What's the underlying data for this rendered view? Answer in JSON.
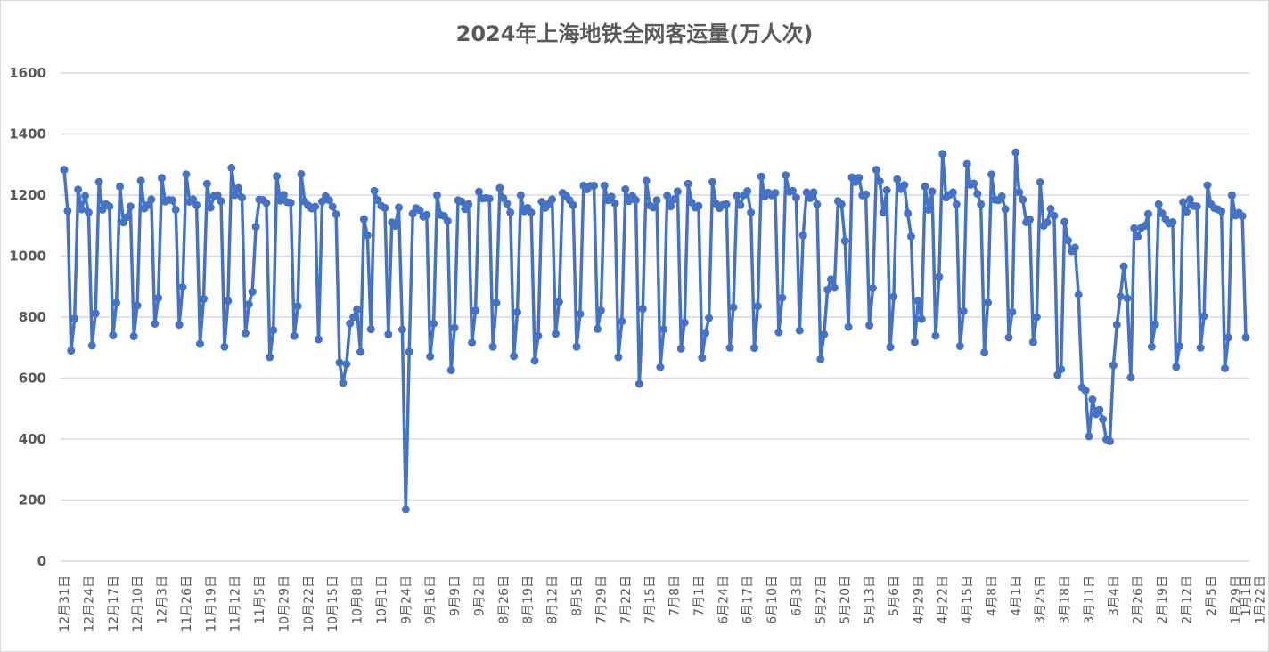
{
  "chart_data": {
    "type": "line",
    "title": "2024年上海地铁全网客运量(万人次)",
    "xlabel": "",
    "ylabel": "",
    "ylim": [
      0,
      1600
    ],
    "yticks": [
      0,
      200,
      400,
      600,
      800,
      1000,
      1200,
      1400,
      1600
    ],
    "grid": true,
    "legend": "none",
    "x_order": "reverse-chronological (12月31日 left → 1月1日 right)",
    "xtick_labels": [
      "12月31日",
      "12月24日",
      "12月17日",
      "12月10日",
      "12月3日",
      "11月26日",
      "11月19日",
      "11月12日",
      "11月5日",
      "10月29日",
      "10月22日",
      "10月15日",
      "10月8日",
      "10月1日",
      "9月24日",
      "9月16日",
      "9月9日",
      "9月2日",
      "8月26日",
      "8月19日",
      "8月12日",
      "8月5日",
      "7月29日",
      "7月22日",
      "7月15日",
      "7月8日",
      "7月1日",
      "6月24日",
      "6月17日",
      "6月10日",
      "6月3日",
      "5月27日",
      "5月20日",
      "5月13日",
      "5月6日",
      "4月29日",
      "4月22日",
      "4月15日",
      "4月8日",
      "4月1日",
      "3月25日",
      "3月18日",
      "3月11日",
      "3月4日",
      "2月26日",
      "2月19日",
      "2月12日",
      "2月5日",
      "1月29日",
      "1月22日",
      "1月15日",
      "1月8日",
      "1月1日"
    ],
    "series": [
      {
        "name": "全网客运量",
        "color": "#4472C4",
        "values": [
          1283,
          1148,
          690,
          795,
          1218,
          1153,
          1197,
          1143,
          707,
          812,
          1243,
          1152,
          1170,
          1163,
          740,
          847,
          1228,
          1110,
          1128,
          1163,
          737,
          838,
          1247,
          1156,
          1167,
          1186,
          778,
          863,
          1256,
          1179,
          1184,
          1183,
          1152,
          775,
          898,
          1268,
          1178,
          1186,
          1167,
          712,
          860,
          1237,
          1159,
          1197,
          1199,
          1180,
          703,
          853,
          1289,
          1200,
          1223,
          1192,
          747,
          842,
          883,
          1096,
          1185,
          1184,
          1174,
          669,
          757,
          1262,
          1182,
          1201,
          1177,
          1175,
          738,
          836,
          1269,
          1179,
          1166,
          1156,
          1162,
          727,
          1179,
          1196,
          1183,
          1162,
          1137,
          651,
          584,
          646,
          779,
          800,
          825,
          686,
          1121,
          1068,
          760,
          1214,
          1183,
          1164,
          1158,
          743,
          1110,
          1099,
          1159,
          759,
          170,
          686,
          1139,
          1157,
          1150,
          1129,
          1135,
          671,
          779,
          1199,
          1135,
          1131,
          1115,
          626,
          765,
          1183,
          1179,
          1154,
          1170,
          716,
          822,
          1211,
          1189,
          1190,
          1188,
          703,
          847,
          1223,
          1190,
          1172,
          1143,
          672,
          816,
          1199,
          1147,
          1158,
          1143,
          657,
          738,
          1178,
          1158,
          1171,
          1186,
          745,
          850,
          1207,
          1197,
          1183,
          1167,
          703,
          810,
          1231,
          1219,
          1230,
          1231,
          761,
          822,
          1231,
          1183,
          1195,
          1173,
          669,
          786,
          1219,
          1180,
          1197,
          1184,
          581,
          827,
          1247,
          1166,
          1159,
          1183,
          636,
          760,
          1198,
          1163,
          1186,
          1212,
          697,
          782,
          1237,
          1176,
          1159,
          1164,
          667,
          748,
          797,
          1243,
          1172,
          1157,
          1168,
          1170,
          700,
          832,
          1198,
          1167,
          1200,
          1213,
          1143,
          699,
          836,
          1261,
          1196,
          1208,
          1199,
          1207,
          750,
          864,
          1265,
          1211,
          1214,
          1192,
          756,
          1068,
          1209,
          1190,
          1209,
          1170,
          662,
          743,
          890,
          923,
          896,
          1180,
          1170,
          1050,
          768,
          1258,
          1243,
          1257,
          1199,
          1202,
          773,
          895,
          1283,
          1245,
          1143,
          1216,
          702,
          867,
          1252,
          1220,
          1233,
          1140,
          1064,
          718,
          853,
          794,
          1228,
          1152,
          1212,
          739,
          932,
          1335,
          1192,
          1201,
          1209,
          1170,
          705,
          820,
          1302,
          1234,
          1238,
          1204,
          1170,
          684,
          848,
          1268,
          1185,
          1183,
          1196,
          1154,
          733,
          817,
          1340,
          1209,
          1185,
          1111,
          1120,
          718,
          800,
          1242,
          1099,
          1110,
          1155,
          1132,
          610,
          629,
          1112,
          1051,
          1016,
          1028,
          873,
          569,
          559,
          409,
          530,
          482,
          496,
          465,
          399,
          393,
          642,
          775,
          868,
          966,
          862,
          602,
          1091,
          1063,
          1093,
          1099,
          1138,
          703,
          776,
          1170,
          1140,
          1121,
          1107,
          1111,
          637,
          705,
          1177,
          1145,
          1186,
          1164,
          1163,
          700,
          803,
          1232,
          1170,
          1157,
          1153,
          1147,
          632,
          733,
          1199,
          1133,
          1142,
          1131,
          733
        ]
      }
    ]
  }
}
